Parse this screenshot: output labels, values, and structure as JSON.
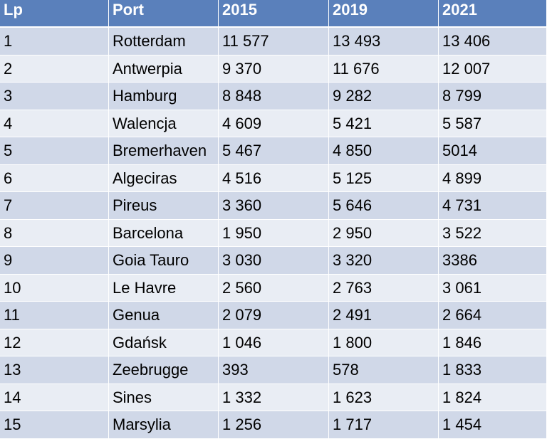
{
  "table": {
    "headers": [
      "Lp",
      "Port",
      "2015",
      "2019",
      "2021"
    ],
    "rows": [
      [
        "1",
        "Rotterdam",
        "11 577",
        "13 493",
        "13 406"
      ],
      [
        "2",
        "Antwerpia",
        "9 370",
        "11 676",
        "12 007"
      ],
      [
        "3",
        "Hamburg",
        "8 848",
        "9 282",
        "8 799"
      ],
      [
        "4",
        "Walencja",
        "4 609",
        "5 421",
        "5 587"
      ],
      [
        "5",
        "Bremerhaven",
        "5 467",
        "4 850",
        "5014"
      ],
      [
        "6",
        "Algeciras",
        "4 516",
        "5 125",
        "4 899"
      ],
      [
        "7",
        "Pireus",
        "3 360",
        "5 646",
        "4 731"
      ],
      [
        "8",
        "Barcelona",
        "1 950",
        "2 950",
        "3 522"
      ],
      [
        "9",
        "Goia Tauro",
        "3 030",
        "3 320",
        "3386"
      ],
      [
        "10",
        "Le Havre",
        "2 560",
        "2 763",
        "3 061"
      ],
      [
        "11",
        "Genua",
        "2 079",
        "2 491",
        "2 664"
      ],
      [
        "12",
        "Gdańsk",
        "1 046",
        "1 800",
        "1 846"
      ],
      [
        "13",
        "Zeebrugge",
        "393",
        "578",
        "1 833"
      ],
      [
        "14",
        "Sines",
        "1 332",
        "1 623",
        "1 824"
      ],
      [
        "15",
        "Marsylia",
        "1 256",
        "1 717",
        "1 454"
      ]
    ],
    "colors": {
      "header_bg": "#5a80bb",
      "row_odd_bg": "#d0d8e8",
      "row_even_bg": "#e9edf4"
    }
  }
}
